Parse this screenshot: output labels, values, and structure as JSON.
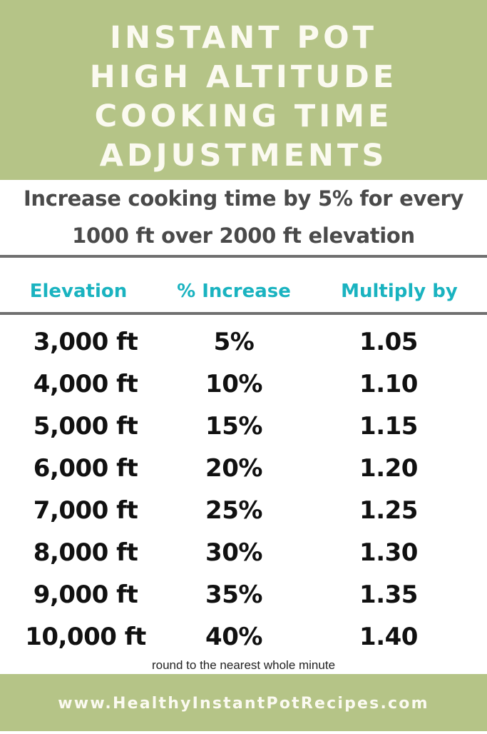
{
  "header": {
    "title_lines": [
      "INSTANT POT",
      "HIGH ALTITUDE",
      "COOKING TIME",
      "ADJUSTMENTS"
    ],
    "background_color": "#b5c487"
  },
  "subtitle": {
    "line1": "Increase cooking time by 5% for every",
    "line2": "1000 ft over 2000 ft elevation"
  },
  "table": {
    "headers": [
      "Elevation",
      "% Increase",
      "Multiply by"
    ],
    "header_color": "#1ab3c0",
    "rows": [
      [
        "3,000 ft",
        "5%",
        "1.05"
      ],
      [
        "4,000 ft",
        "10%",
        "1.10"
      ],
      [
        "5,000 ft",
        "15%",
        "1.15"
      ],
      [
        "6,000 ft",
        "20%",
        "1.20"
      ],
      [
        "7,000 ft",
        "25%",
        "1.25"
      ],
      [
        "8,000 ft",
        "30%",
        "1.30"
      ],
      [
        "9,000 ft",
        "35%",
        "1.35"
      ],
      [
        "10,000 ft",
        "40%",
        "1.40"
      ]
    ]
  },
  "note": "round to the nearest whole minute",
  "footer": {
    "url": "www.HealthyInstantPotRecipes.com"
  }
}
